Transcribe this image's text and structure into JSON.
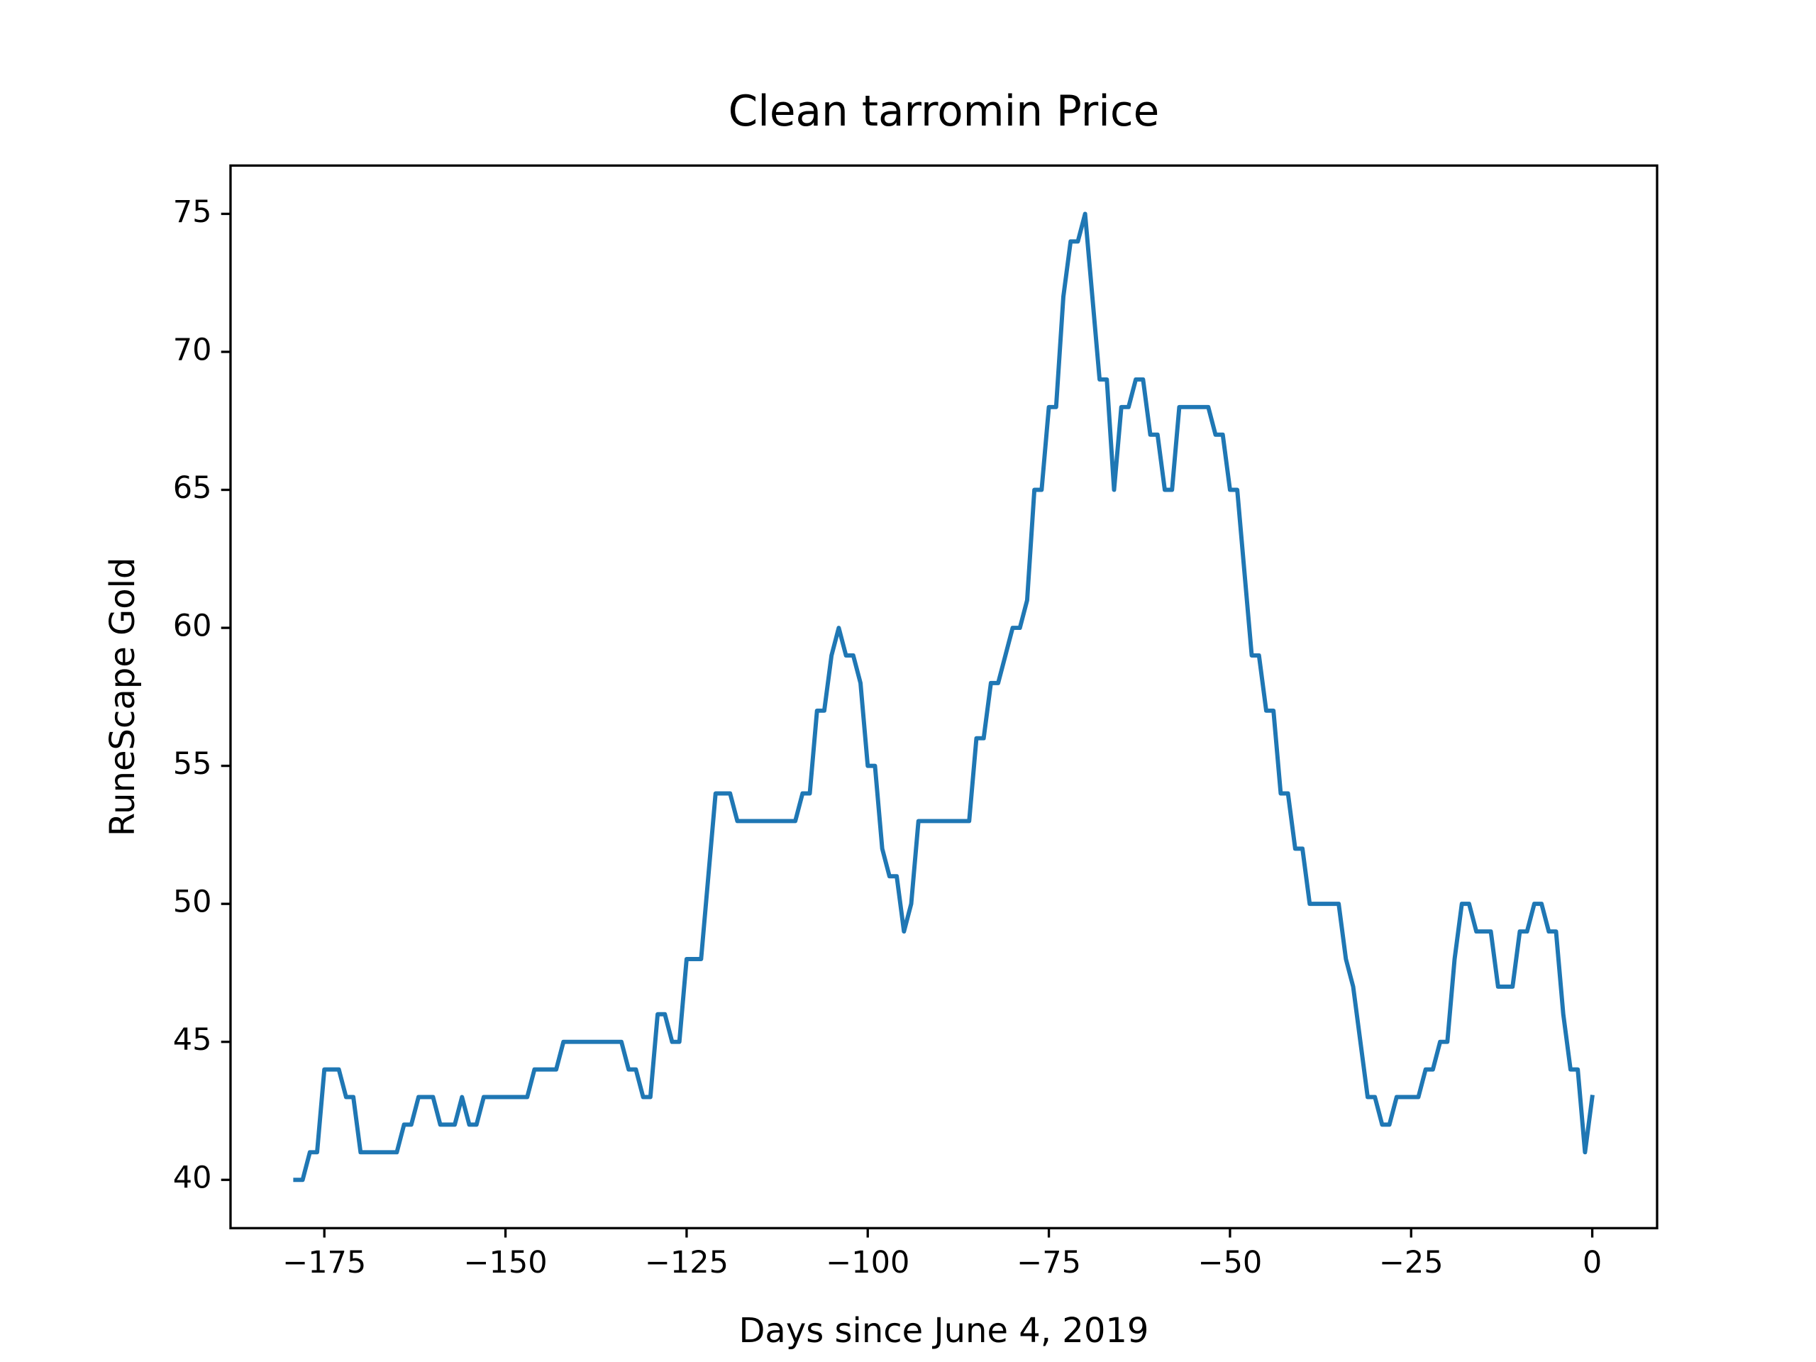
{
  "chart_data": {
    "type": "line",
    "title": "Clean tarromin Price",
    "xlabel": "Days since June 4, 2019",
    "ylabel": "RuneScape Gold",
    "x": [
      -179,
      -178,
      -177,
      -176,
      -175,
      -174,
      -173,
      -172,
      -171,
      -170,
      -169,
      -168,
      -167,
      -166,
      -165,
      -164,
      -163,
      -162,
      -161,
      -160,
      -159,
      -158,
      -157,
      -156,
      -155,
      -154,
      -153,
      -152,
      -151,
      -150,
      -149,
      -148,
      -147,
      -146,
      -145,
      -144,
      -143,
      -142,
      -141,
      -140,
      -139,
      -138,
      -137,
      -136,
      -135,
      -134,
      -133,
      -132,
      -131,
      -130,
      -129,
      -128,
      -127,
      -126,
      -125,
      -124,
      -123,
      -122,
      -121,
      -120,
      -119,
      -118,
      -117,
      -116,
      -115,
      -114,
      -113,
      -112,
      -111,
      -110,
      -109,
      -108,
      -107,
      -106,
      -105,
      -104,
      -103,
      -102,
      -101,
      -100,
      -99,
      -98,
      -97,
      -96,
      -95,
      -94,
      -93,
      -92,
      -91,
      -90,
      -89,
      -88,
      -87,
      -86,
      -85,
      -84,
      -83,
      -82,
      -81,
      -80,
      -79,
      -78,
      -77,
      -76,
      -75,
      -74,
      -73,
      -72,
      -71,
      -70,
      -69,
      -68,
      -67,
      -66,
      -65,
      -64,
      -63,
      -62,
      -61,
      -60,
      -59,
      -58,
      -57,
      -56,
      -55,
      -54,
      -53,
      -52,
      -51,
      -50,
      -49,
      -48,
      -47,
      -46,
      -45,
      -44,
      -43,
      -42,
      -41,
      -40,
      -39,
      -38,
      -37,
      -36,
      -35,
      -34,
      -33,
      -32,
      -31,
      -30,
      -29,
      -28,
      -27,
      -26,
      -25,
      -24,
      -23,
      -22,
      -21,
      -20,
      -19,
      -18,
      -17,
      -16,
      -15,
      -14,
      -13,
      -12,
      -11,
      -10,
      -9,
      -8,
      -7,
      -6,
      -5,
      -4,
      -3,
      -2,
      -1,
      0
    ],
    "series": [
      {
        "color": "#1f77b4",
        "values": [
          40,
          40,
          41,
          41,
          44,
          44,
          44,
          43,
          43,
          41,
          41,
          41,
          41,
          41,
          41,
          42,
          42,
          43,
          43,
          43,
          42,
          42,
          42,
          43,
          42,
          42,
          43,
          43,
          43,
          43,
          43,
          43,
          43,
          44,
          44,
          44,
          44,
          45,
          45,
          45,
          45,
          45,
          45,
          45,
          45,
          45,
          44,
          44,
          43,
          43,
          46,
          46,
          45,
          45,
          48,
          48,
          48,
          51,
          54,
          54,
          54,
          53,
          53,
          53,
          53,
          53,
          53,
          53,
          53,
          53,
          54,
          54,
          57,
          57,
          59,
          60,
          59,
          59,
          58,
          55,
          55,
          52,
          51,
          51,
          49,
          50,
          53,
          53,
          53,
          53,
          53,
          53,
          53,
          53,
          56,
          56,
          58,
          58,
          59,
          60,
          60,
          61,
          65,
          65,
          68,
          68,
          72,
          74,
          74,
          75,
          72,
          69,
          69,
          65,
          68,
          68,
          69,
          69,
          67,
          67,
          65,
          65,
          68,
          68,
          68,
          68,
          68,
          67,
          67,
          65,
          65,
          62,
          59,
          59,
          57,
          57,
          54,
          54,
          52,
          52,
          50,
          50,
          50,
          50,
          50,
          48,
          47,
          45,
          43,
          43,
          42,
          42,
          43,
          43,
          43,
          43,
          44,
          44,
          45,
          45,
          48,
          50,
          50,
          49,
          49,
          49,
          47,
          47,
          47,
          49,
          49,
          50,
          50,
          49,
          49,
          46,
          44,
          44,
          41,
          43
        ]
      }
    ],
    "xlim": [
      -187.95,
      8.95
    ],
    "ylim": [
      38.25,
      76.75
    ],
    "xticks": [
      {
        "value": -175,
        "label": "−175"
      },
      {
        "value": -150,
        "label": "−150"
      },
      {
        "value": -125,
        "label": "−125"
      },
      {
        "value": -100,
        "label": "−100"
      },
      {
        "value": -75,
        "label": "−75"
      },
      {
        "value": -50,
        "label": "−50"
      },
      {
        "value": -25,
        "label": "−25"
      },
      0
    ],
    "yticks": [
      40,
      45,
      50,
      55,
      60,
      65,
      70,
      75
    ]
  }
}
